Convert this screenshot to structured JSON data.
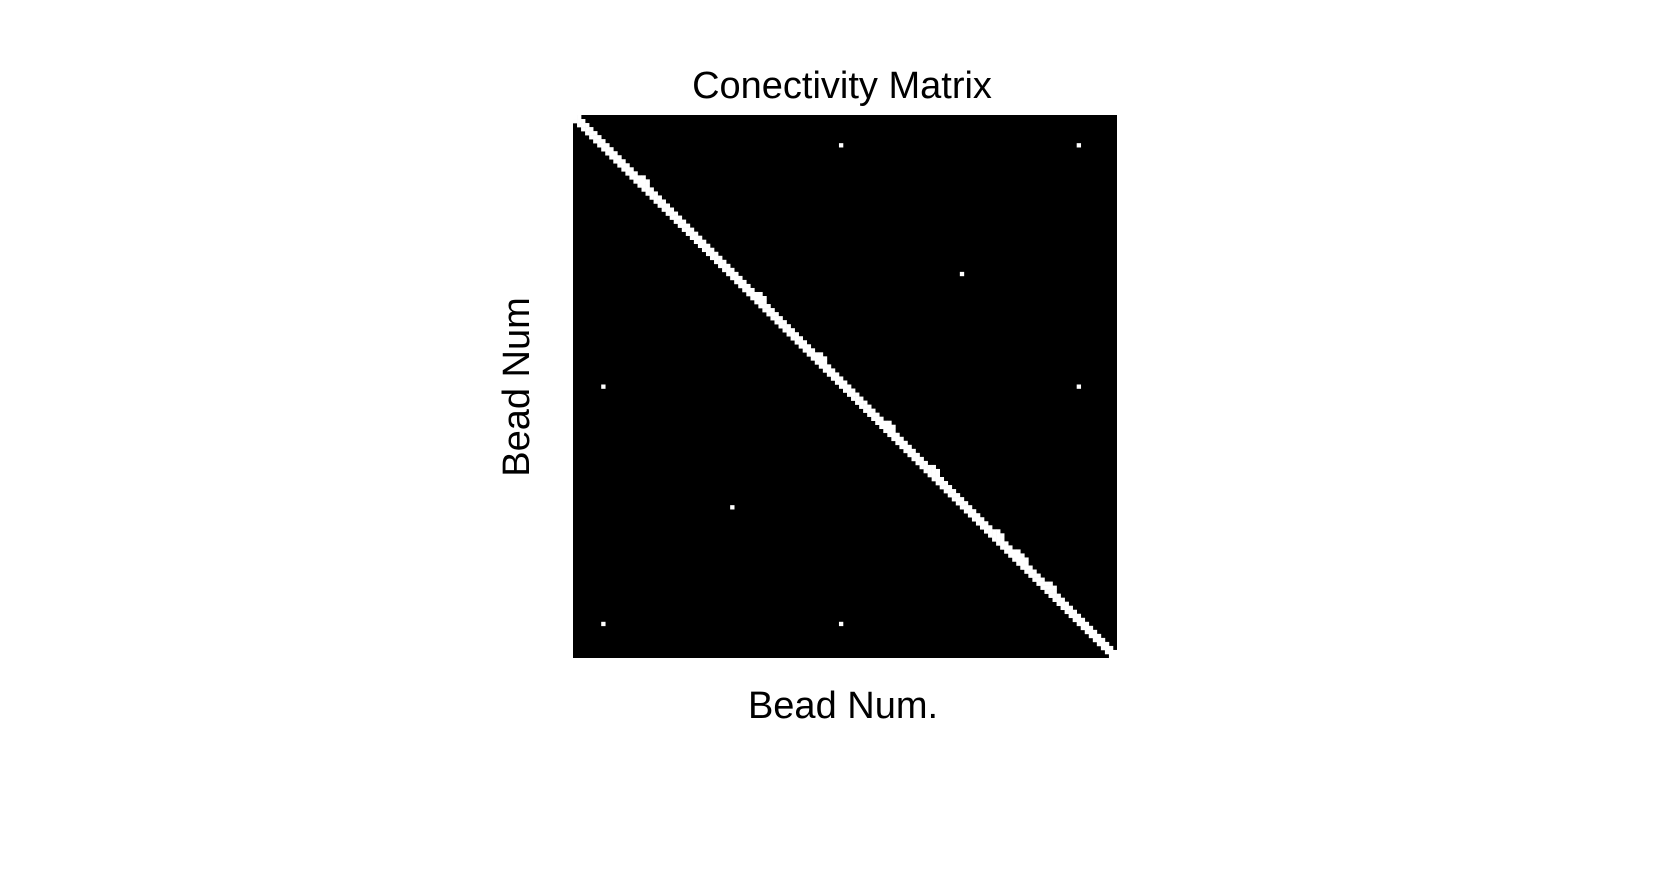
{
  "chart_data": {
    "type": "heatmap",
    "title": "Conectivity Matrix",
    "xlabel": "Bead Num.",
    "ylabel": "Bead Num",
    "matrix_size": 135,
    "xlim": [
      1,
      135
    ],
    "ylim": [
      1,
      135
    ],
    "y_direction": "top-to-bottom",
    "grid": false,
    "legend": "none",
    "colormap": "gray",
    "colors": {
      "connected": "#ffffff",
      "not_connected": "#000000"
    },
    "diagonal_band_offsets": [
      -1,
      0,
      1
    ],
    "diagonal_band_value": 1,
    "extra_contacts": [
      {
        "i": 8,
        "j": 67,
        "value": 1
      },
      {
        "i": 8,
        "j": 126,
        "value": 1
      },
      {
        "i": 40,
        "j": 97,
        "value": 1
      },
      {
        "i": 68,
        "j": 8,
        "value": 1
      },
      {
        "i": 68,
        "j": 126,
        "value": 1
      },
      {
        "i": 98,
        "j": 40,
        "value": 1
      },
      {
        "i": 127,
        "j": 8,
        "value": 1
      },
      {
        "i": 127,
        "j": 67,
        "value": 1
      },
      {
        "i": 16,
        "j": 18,
        "value": 1
      },
      {
        "i": 17,
        "j": 19,
        "value": 1
      },
      {
        "i": 45,
        "j": 47,
        "value": 1
      },
      {
        "i": 46,
        "j": 48,
        "value": 1
      },
      {
        "i": 60,
        "j": 62,
        "value": 1
      },
      {
        "i": 61,
        "j": 63,
        "value": 1
      },
      {
        "i": 77,
        "j": 79,
        "value": 1
      },
      {
        "i": 78,
        "j": 80,
        "value": 1
      },
      {
        "i": 88,
        "j": 90,
        "value": 1
      },
      {
        "i": 89,
        "j": 91,
        "value": 1
      },
      {
        "i": 104,
        "j": 106,
        "value": 1
      },
      {
        "i": 105,
        "j": 107,
        "value": 1
      },
      {
        "i": 109,
        "j": 111,
        "value": 1
      },
      {
        "i": 110,
        "j": 112,
        "value": 1
      },
      {
        "i": 111,
        "j": 113,
        "value": 1
      },
      {
        "i": 117,
        "j": 119,
        "value": 1
      },
      {
        "i": 118,
        "j": 120,
        "value": 1
      }
    ]
  }
}
